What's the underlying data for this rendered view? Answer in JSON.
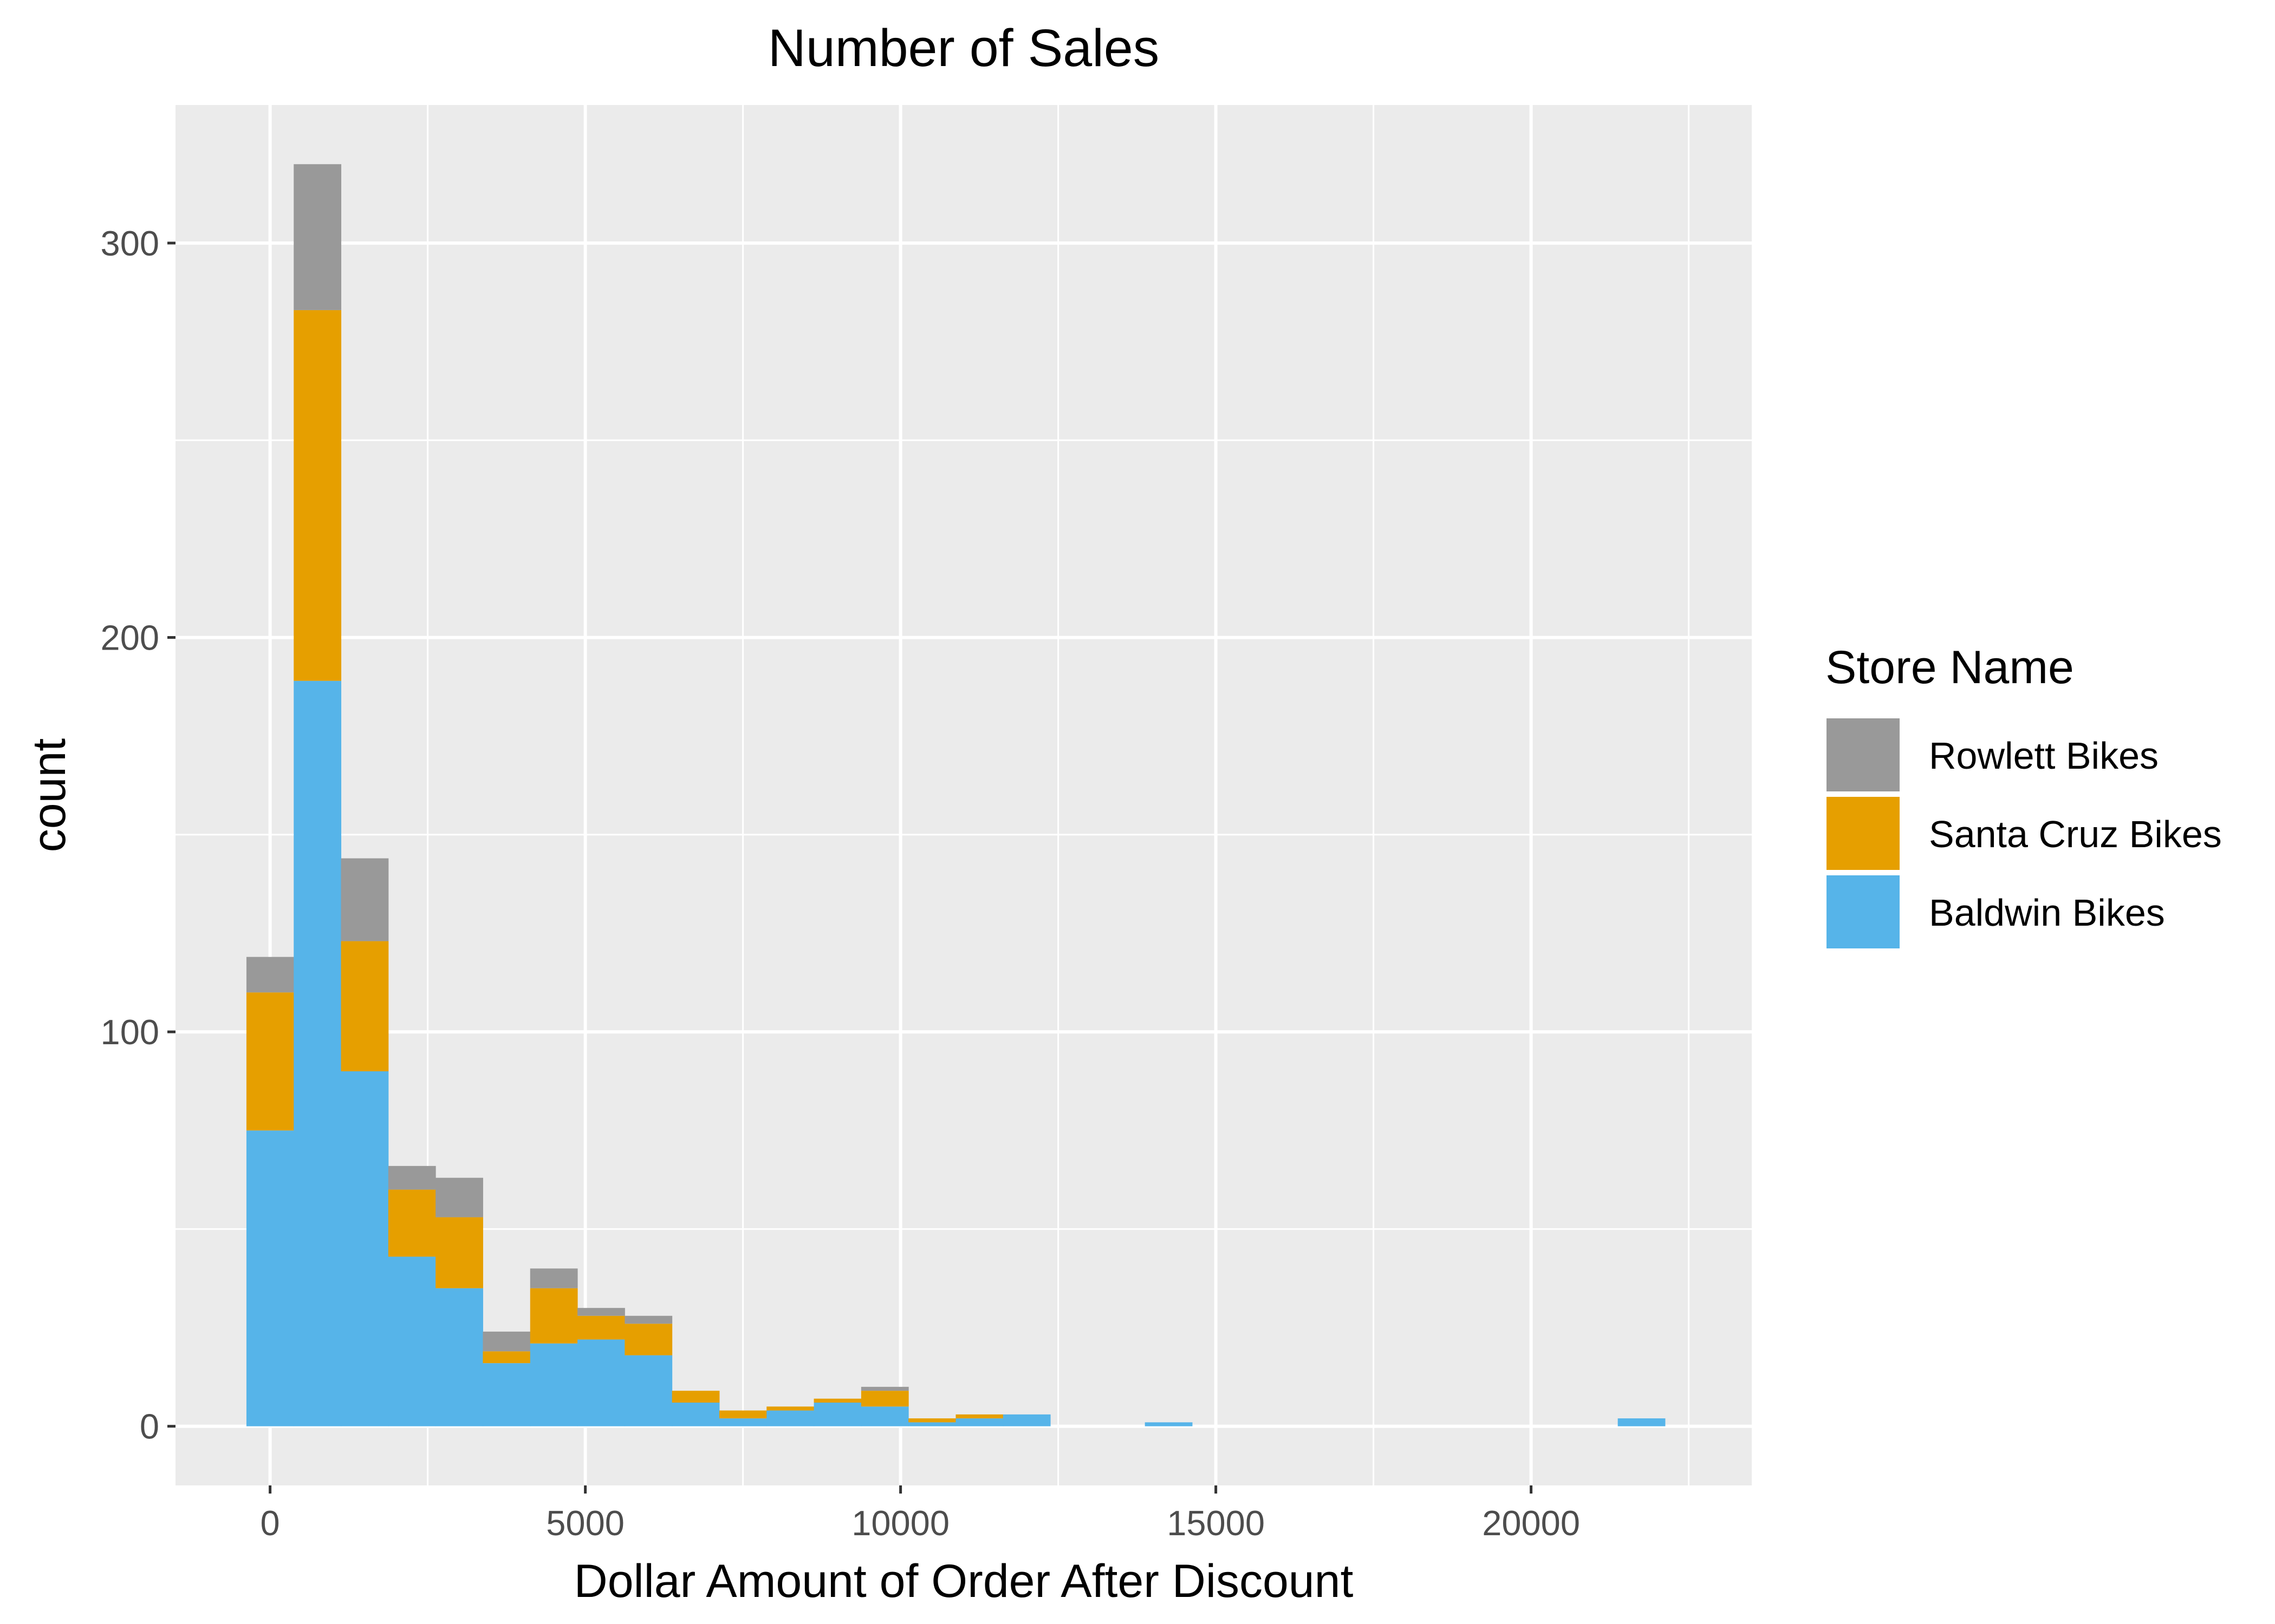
{
  "chart_data": {
    "type": "bar",
    "subtype": "stacked-histogram",
    "title": "Number of Sales",
    "xlabel": "Dollar Amount of Order After Discount",
    "ylabel": "count",
    "xlim": [
      -1500,
      23500
    ],
    "ylim": [
      -15,
      335
    ],
    "x_ticks": [
      0,
      5000,
      10000,
      15000,
      20000
    ],
    "y_ticks": [
      0,
      100,
      200,
      300
    ],
    "grid": true,
    "bin_edges": [
      -375,
      375,
      1125,
      1875,
      2625,
      3375,
      4125,
      4875,
      5625,
      6375,
      7125,
      7875,
      8625,
      9375,
      10125,
      10875,
      11625,
      12375,
      13125,
      13875,
      14625,
      15375,
      16125,
      16875,
      17625,
      18375,
      19125,
      19875,
      20625,
      21375,
      22125
    ],
    "series": [
      {
        "name": "Baldwin Bikes",
        "color": "#56b4e9",
        "values": [
          75,
          189,
          90,
          43,
          35,
          16,
          21,
          22,
          18,
          6,
          2,
          4,
          6,
          5,
          1,
          2,
          3,
          0,
          0,
          1,
          0,
          0,
          0,
          0,
          0,
          0,
          0,
          0,
          0,
          2
        ]
      },
      {
        "name": "Santa Cruz Bikes",
        "color": "#e69f00",
        "values": [
          35,
          94,
          33,
          17,
          18,
          3,
          14,
          6,
          8,
          3,
          2,
          1,
          1,
          4,
          1,
          1,
          0,
          0,
          0,
          0,
          0,
          0,
          0,
          0,
          0,
          0,
          0,
          0,
          0,
          0
        ]
      },
      {
        "name": "Rowlett Bikes",
        "color": "#999999",
        "values": [
          9,
          37,
          21,
          6,
          10,
          5,
          5,
          2,
          2,
          0,
          0,
          0,
          0,
          1,
          0,
          0,
          0,
          0,
          0,
          0,
          0,
          0,
          0,
          0,
          0,
          0,
          0,
          0,
          0,
          0
        ]
      }
    ],
    "legend": {
      "title": "Store Name",
      "position": "right",
      "entries": [
        {
          "label": "Rowlett Bikes",
          "color": "#999999"
        },
        {
          "label": "Santa Cruz Bikes",
          "color": "#e69f00"
        },
        {
          "label": "Baldwin Bikes",
          "color": "#56b4e9"
        }
      ]
    }
  }
}
